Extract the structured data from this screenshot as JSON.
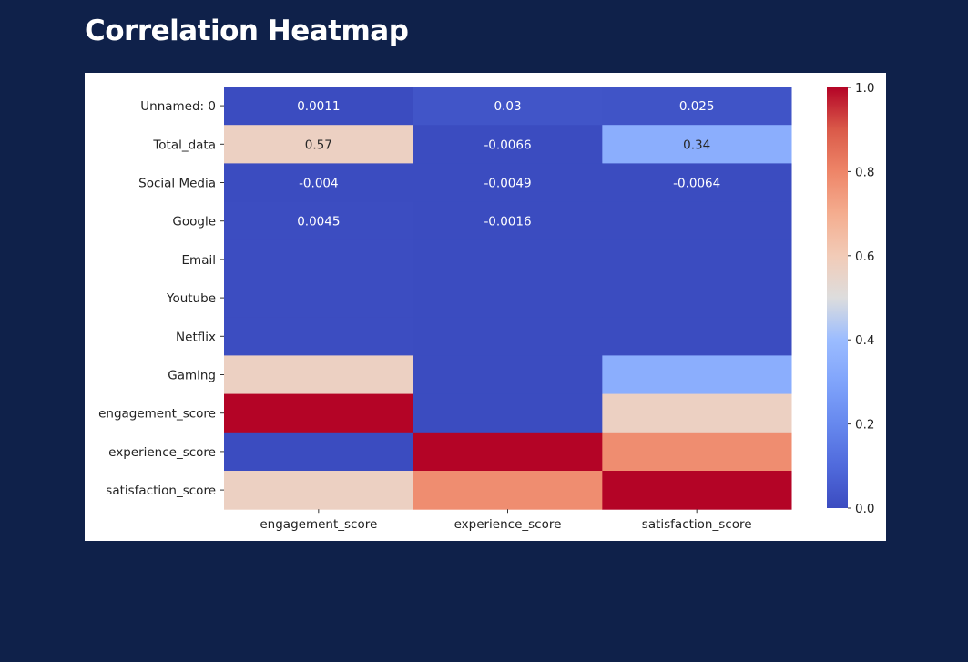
{
  "page": {
    "title": "Correlation Heatmap"
  },
  "chart_data": {
    "type": "heatmap",
    "title": "",
    "colormap": "coolwarm",
    "x": [
      "engagement_score",
      "experience_score",
      "satisfaction_score"
    ],
    "y": [
      "Unnamed: 0",
      "Total_data",
      "Social Media",
      "Google",
      "Email",
      "Youtube",
      "Netflix",
      "Gaming",
      "engagement_score",
      "experience_score",
      "satisfaction_score"
    ],
    "values": [
      [
        0.0011,
        0.03,
        0.025
      ],
      [
        0.57,
        -0.0066,
        0.34
      ],
      [
        -0.004,
        -0.0049,
        -0.0064
      ],
      [
        0.0045,
        -0.0016,
        0.0
      ],
      [
        0.004,
        0.0,
        0.0
      ],
      [
        0.004,
        0.0,
        0.0
      ],
      [
        0.004,
        0.0,
        0.0
      ],
      [
        0.57,
        -0.0066,
        0.34
      ],
      [
        1.0,
        -0.003,
        0.57
      ],
      [
        -0.003,
        1.0,
        0.78
      ],
      [
        0.57,
        0.78,
        1.0
      ]
    ],
    "annotations": [
      [
        "0.0011",
        "0.03",
        "0.025"
      ],
      [
        "0.57",
        "-0.0066",
        "0.34"
      ],
      [
        "-0.004",
        "-0.0049",
        "-0.0064"
      ],
      [
        "0.0045",
        "-0.0016",
        ""
      ],
      [
        "",
        "",
        ""
      ],
      [
        "",
        "",
        ""
      ],
      [
        "",
        "",
        ""
      ],
      [
        "",
        "",
        ""
      ],
      [
        "",
        "",
        ""
      ],
      [
        "",
        "",
        ""
      ],
      [
        "",
        "",
        ""
      ]
    ],
    "colorbar": {
      "range": [
        0.0,
        1.0
      ],
      "ticks": [
        0.0,
        0.2,
        0.4,
        0.6,
        0.8,
        1.0
      ],
      "tick_labels": [
        "0.0",
        "0.2",
        "0.4",
        "0.6",
        "0.8",
        "1.0"
      ]
    }
  }
}
